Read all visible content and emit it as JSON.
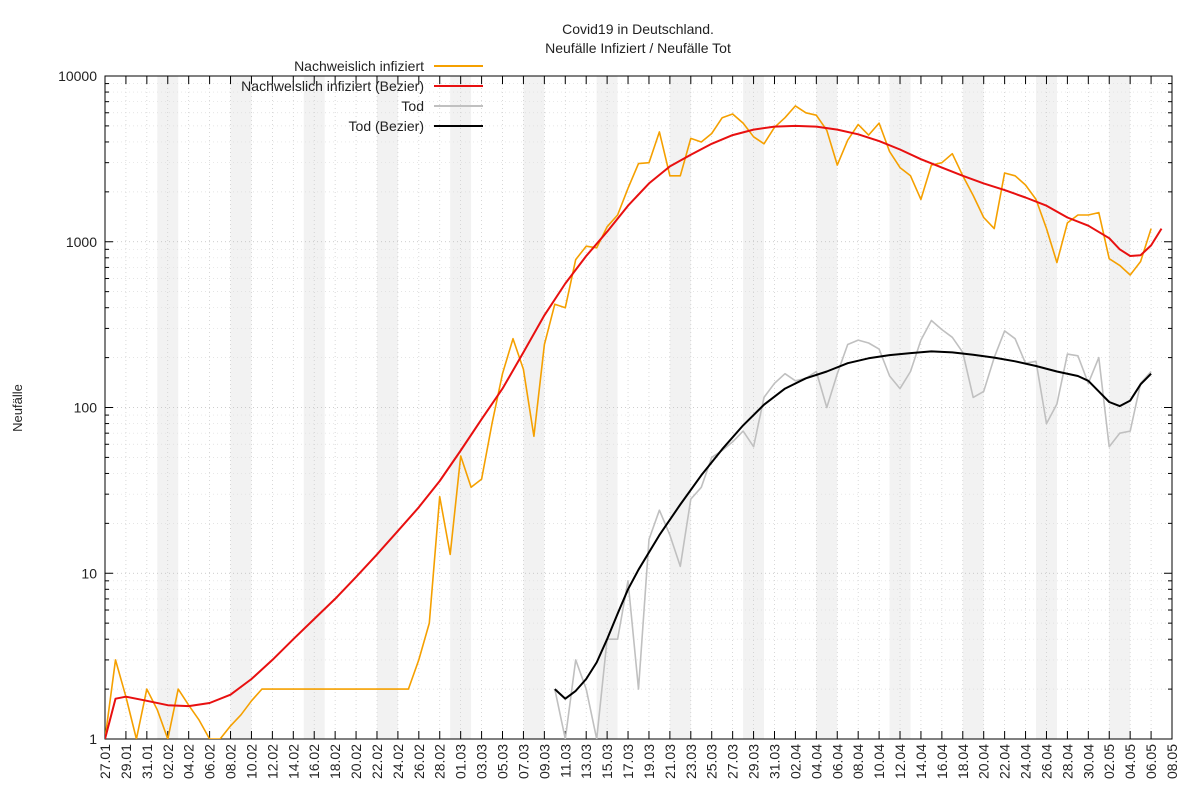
{
  "chart_data": {
    "type": "line",
    "title": "Covid19 in Deutschland.",
    "subtitle": "Neufälle Infiziert / Neufälle Tot",
    "ylabel": "Neufälle",
    "xlabel": "",
    "y_scale": "log",
    "ylim": [
      1,
      10000
    ],
    "y_ticks": [
      1,
      10,
      100,
      1000,
      10000
    ],
    "y_tick_labels": [
      "1",
      "10",
      "100",
      "1000",
      "10000"
    ],
    "x_start": "2020-01-27",
    "x_end": "2020-05-08",
    "x_tick_labels": [
      "27.01",
      "29.01",
      "31.01",
      "02.02",
      "04.02",
      "06.02",
      "08.02",
      "10.02",
      "12.02",
      "14.02",
      "16.02",
      "18.02",
      "20.02",
      "22.02",
      "24.02",
      "26.02",
      "28.02",
      "01.03",
      "03.03",
      "05.03",
      "07.03",
      "09.03",
      "11.03",
      "13.03",
      "15.03",
      "17.03",
      "19.03",
      "21.03",
      "23.03",
      "25.03",
      "27.03",
      "29.03",
      "31.03",
      "02.04",
      "04.04",
      "06.04",
      "08.04",
      "10.04",
      "12.04",
      "14.04",
      "16.04",
      "18.04",
      "20.04",
      "22.04",
      "24.04",
      "26.04",
      "28.04",
      "30.04",
      "02.05",
      "04.05",
      "06.05",
      "08.05"
    ],
    "weekend_shading": true,
    "grid": true,
    "legend_position": "top-left",
    "series": [
      {
        "name": "Nachweislich infiziert",
        "color": "#f5a000",
        "points": [
          [
            "2020-01-27",
            1
          ],
          [
            "2020-01-28",
            3
          ],
          [
            "2020-01-29",
            1.8
          ],
          [
            "2020-01-30",
            1
          ],
          [
            "2020-01-31",
            2
          ],
          [
            "2020-02-01",
            1.5
          ],
          [
            "2020-02-02",
            1
          ],
          [
            "2020-02-03",
            2
          ],
          [
            "2020-02-04",
            1.6
          ],
          [
            "2020-02-05",
            1.3
          ],
          [
            "2020-02-06",
            1
          ],
          [
            "2020-02-07",
            1
          ],
          [
            "2020-02-08",
            1.2
          ],
          [
            "2020-02-09",
            1.4
          ],
          [
            "2020-02-10",
            1.7
          ],
          [
            "2020-02-11",
            2
          ],
          [
            "2020-02-12",
            2
          ],
          [
            "2020-02-13",
            2
          ],
          [
            "2020-02-14",
            2
          ],
          [
            "2020-02-15",
            2
          ],
          [
            "2020-02-16",
            2
          ],
          [
            "2020-02-17",
            2
          ],
          [
            "2020-02-18",
            2
          ],
          [
            "2020-02-19",
            2
          ],
          [
            "2020-02-20",
            2
          ],
          [
            "2020-02-21",
            2
          ],
          [
            "2020-02-22",
            2
          ],
          [
            "2020-02-23",
            2
          ],
          [
            "2020-02-24",
            2
          ],
          [
            "2020-02-25",
            2
          ],
          [
            "2020-02-26",
            3
          ],
          [
            "2020-02-27",
            5
          ],
          [
            "2020-02-28",
            29
          ],
          [
            "2020-02-29",
            13
          ],
          [
            "2020-03-01",
            51
          ],
          [
            "2020-03-02",
            33
          ],
          [
            "2020-03-03",
            37
          ],
          [
            "2020-03-04",
            80
          ],
          [
            "2020-03-05",
            160
          ],
          [
            "2020-03-06",
            260
          ],
          [
            "2020-03-07",
            170
          ],
          [
            "2020-03-08",
            67
          ],
          [
            "2020-03-09",
            240
          ],
          [
            "2020-03-10",
            420
          ],
          [
            "2020-03-11",
            400
          ],
          [
            "2020-03-12",
            780
          ],
          [
            "2020-03-13",
            940
          ],
          [
            "2020-03-14",
            920
          ],
          [
            "2020-03-15",
            1230
          ],
          [
            "2020-03-16",
            1450
          ],
          [
            "2020-03-17",
            2100
          ],
          [
            "2020-03-18",
            2960
          ],
          [
            "2020-03-19",
            3000
          ],
          [
            "2020-03-20",
            4600
          ],
          [
            "2020-03-21",
            2500
          ],
          [
            "2020-03-22",
            2500
          ],
          [
            "2020-03-23",
            4200
          ],
          [
            "2020-03-24",
            4000
          ],
          [
            "2020-03-25",
            4500
          ],
          [
            "2020-03-26",
            5600
          ],
          [
            "2020-03-27",
            5900
          ],
          [
            "2020-03-28",
            5200
          ],
          [
            "2020-03-29",
            4300
          ],
          [
            "2020-03-30",
            3900
          ],
          [
            "2020-03-31",
            4900
          ],
          [
            "2020-04-01",
            5600
          ],
          [
            "2020-04-02",
            6600
          ],
          [
            "2020-04-03",
            6000
          ],
          [
            "2020-04-04",
            5800
          ],
          [
            "2020-04-05",
            4700
          ],
          [
            "2020-04-06",
            2900
          ],
          [
            "2020-04-07",
            4100
          ],
          [
            "2020-04-08",
            5100
          ],
          [
            "2020-04-09",
            4400
          ],
          [
            "2020-04-10",
            5200
          ],
          [
            "2020-04-11",
            3500
          ],
          [
            "2020-04-12",
            2800
          ],
          [
            "2020-04-13",
            2500
          ],
          [
            "2020-04-14",
            1800
          ],
          [
            "2020-04-15",
            2900
          ],
          [
            "2020-04-16",
            3000
          ],
          [
            "2020-04-17",
            3400
          ],
          [
            "2020-04-18",
            2500
          ],
          [
            "2020-04-19",
            1900
          ],
          [
            "2020-04-20",
            1400
          ],
          [
            "2020-04-21",
            1200
          ],
          [
            "2020-04-22",
            2600
          ],
          [
            "2020-04-23",
            2500
          ],
          [
            "2020-04-24",
            2200
          ],
          [
            "2020-04-25",
            1800
          ],
          [
            "2020-04-26",
            1200
          ],
          [
            "2020-04-27",
            750
          ],
          [
            "2020-04-28",
            1300
          ],
          [
            "2020-04-29",
            1450
          ],
          [
            "2020-04-30",
            1450
          ],
          [
            "2020-05-01",
            1500
          ],
          [
            "2020-05-02",
            790
          ],
          [
            "2020-05-03",
            720
          ],
          [
            "2020-05-04",
            630
          ],
          [
            "2020-05-05",
            760
          ],
          [
            "2020-05-06",
            1200
          ]
        ]
      },
      {
        "name": "Nachweislich infiziert (Bezier)",
        "color": "#e81010",
        "points": [
          [
            "2020-01-27",
            1
          ],
          [
            "2020-01-28",
            1.75
          ],
          [
            "2020-01-29",
            1.8
          ],
          [
            "2020-01-31",
            1.7
          ],
          [
            "2020-02-02",
            1.6
          ],
          [
            "2020-02-04",
            1.58
          ],
          [
            "2020-02-06",
            1.65
          ],
          [
            "2020-02-08",
            1.85
          ],
          [
            "2020-02-10",
            2.3
          ],
          [
            "2020-02-12",
            3.0
          ],
          [
            "2020-02-14",
            4.0
          ],
          [
            "2020-02-16",
            5.3
          ],
          [
            "2020-02-18",
            7.0
          ],
          [
            "2020-02-20",
            9.5
          ],
          [
            "2020-02-22",
            13
          ],
          [
            "2020-02-24",
            18
          ],
          [
            "2020-02-26",
            25
          ],
          [
            "2020-02-28",
            36
          ],
          [
            "2020-03-01",
            55
          ],
          [
            "2020-03-03",
            85
          ],
          [
            "2020-03-05",
            130
          ],
          [
            "2020-03-07",
            215
          ],
          [
            "2020-03-09",
            360
          ],
          [
            "2020-03-11",
            560
          ],
          [
            "2020-03-13",
            820
          ],
          [
            "2020-03-15",
            1150
          ],
          [
            "2020-03-17",
            1650
          ],
          [
            "2020-03-19",
            2250
          ],
          [
            "2020-03-21",
            2850
          ],
          [
            "2020-03-23",
            3350
          ],
          [
            "2020-03-25",
            3900
          ],
          [
            "2020-03-27",
            4400
          ],
          [
            "2020-03-29",
            4750
          ],
          [
            "2020-03-31",
            4950
          ],
          [
            "2020-04-02",
            5000
          ],
          [
            "2020-04-04",
            4950
          ],
          [
            "2020-04-06",
            4750
          ],
          [
            "2020-04-08",
            4450
          ],
          [
            "2020-04-10",
            4050
          ],
          [
            "2020-04-12",
            3600
          ],
          [
            "2020-04-14",
            3150
          ],
          [
            "2020-04-16",
            2800
          ],
          [
            "2020-04-18",
            2500
          ],
          [
            "2020-04-20",
            2250
          ],
          [
            "2020-04-22",
            2050
          ],
          [
            "2020-04-24",
            1850
          ],
          [
            "2020-04-26",
            1650
          ],
          [
            "2020-04-28",
            1400
          ],
          [
            "2020-04-30",
            1250
          ],
          [
            "2020-05-02",
            1050
          ],
          [
            "2020-05-03",
            900
          ],
          [
            "2020-05-04",
            820
          ],
          [
            "2020-05-05",
            830
          ],
          [
            "2020-05-06",
            950
          ],
          [
            "2020-05-07",
            1200
          ]
        ]
      },
      {
        "name": "Tod",
        "color": "#c0c0c0",
        "points": [
          [
            "2020-03-10",
            2
          ],
          [
            "2020-03-11",
            1
          ],
          [
            "2020-03-12",
            3
          ],
          [
            "2020-03-13",
            2
          ],
          [
            "2020-03-14",
            1
          ],
          [
            "2020-03-15",
            4
          ],
          [
            "2020-03-16",
            4
          ],
          [
            "2020-03-17",
            9
          ],
          [
            "2020-03-18",
            2
          ],
          [
            "2020-03-19",
            16
          ],
          [
            "2020-03-20",
            24
          ],
          [
            "2020-03-21",
            17
          ],
          [
            "2020-03-22",
            11
          ],
          [
            "2020-03-23",
            28
          ],
          [
            "2020-03-24",
            33
          ],
          [
            "2020-03-25",
            50
          ],
          [
            "2020-03-26",
            55
          ],
          [
            "2020-03-27",
            62
          ],
          [
            "2020-03-28",
            72
          ],
          [
            "2020-03-29",
            58
          ],
          [
            "2020-03-30",
            115
          ],
          [
            "2020-03-31",
            140
          ],
          [
            "2020-04-01",
            160
          ],
          [
            "2020-04-02",
            145
          ],
          [
            "2020-04-03",
            150
          ],
          [
            "2020-04-04",
            165
          ],
          [
            "2020-04-05",
            100
          ],
          [
            "2020-04-06",
            160
          ],
          [
            "2020-04-07",
            240
          ],
          [
            "2020-04-08",
            255
          ],
          [
            "2020-04-09",
            245
          ],
          [
            "2020-04-10",
            225
          ],
          [
            "2020-04-11",
            155
          ],
          [
            "2020-04-12",
            130
          ],
          [
            "2020-04-13",
            165
          ],
          [
            "2020-04-14",
            255
          ],
          [
            "2020-04-15",
            335
          ],
          [
            "2020-04-16",
            295
          ],
          [
            "2020-04-17",
            265
          ],
          [
            "2020-04-18",
            215
          ],
          [
            "2020-04-19",
            115
          ],
          [
            "2020-04-20",
            125
          ],
          [
            "2020-04-21",
            200
          ],
          [
            "2020-04-22",
            290
          ],
          [
            "2020-04-23",
            260
          ],
          [
            "2020-04-24",
            185
          ],
          [
            "2020-04-25",
            190
          ],
          [
            "2020-04-26",
            80
          ],
          [
            "2020-04-27",
            105
          ],
          [
            "2020-04-28",
            210
          ],
          [
            "2020-04-29",
            205
          ],
          [
            "2020-04-30",
            140
          ],
          [
            "2020-05-01",
            200
          ],
          [
            "2020-05-02",
            58
          ],
          [
            "2020-05-03",
            70
          ],
          [
            "2020-05-04",
            72
          ],
          [
            "2020-05-05",
            140
          ],
          [
            "2020-05-06",
            165
          ]
        ]
      },
      {
        "name": "Tod (Bezier)",
        "color": "#000000",
        "points": [
          [
            "2020-03-10",
            2
          ],
          [
            "2020-03-11",
            1.75
          ],
          [
            "2020-03-12",
            1.95
          ],
          [
            "2020-03-13",
            2.3
          ],
          [
            "2020-03-14",
            2.9
          ],
          [
            "2020-03-15",
            4.0
          ],
          [
            "2020-03-16",
            5.7
          ],
          [
            "2020-03-17",
            8.0
          ],
          [
            "2020-03-18",
            10.5
          ],
          [
            "2020-03-20",
            17
          ],
          [
            "2020-03-22",
            26
          ],
          [
            "2020-03-24",
            39
          ],
          [
            "2020-03-26",
            56
          ],
          [
            "2020-03-28",
            78
          ],
          [
            "2020-03-30",
            104
          ],
          [
            "2020-04-01",
            130
          ],
          [
            "2020-04-03",
            150
          ],
          [
            "2020-04-05",
            165
          ],
          [
            "2020-04-07",
            185
          ],
          [
            "2020-04-09",
            198
          ],
          [
            "2020-04-11",
            207
          ],
          [
            "2020-04-13",
            213
          ],
          [
            "2020-04-15",
            218
          ],
          [
            "2020-04-17",
            215
          ],
          [
            "2020-04-19",
            208
          ],
          [
            "2020-04-21",
            200
          ],
          [
            "2020-04-23",
            190
          ],
          [
            "2020-04-25",
            178
          ],
          [
            "2020-04-27",
            165
          ],
          [
            "2020-04-29",
            155
          ],
          [
            "2020-04-30",
            145
          ],
          [
            "2020-05-01",
            125
          ],
          [
            "2020-05-02",
            108
          ],
          [
            "2020-05-03",
            102
          ],
          [
            "2020-05-04",
            110
          ],
          [
            "2020-05-05",
            138
          ],
          [
            "2020-05-06",
            160
          ]
        ]
      }
    ]
  }
}
